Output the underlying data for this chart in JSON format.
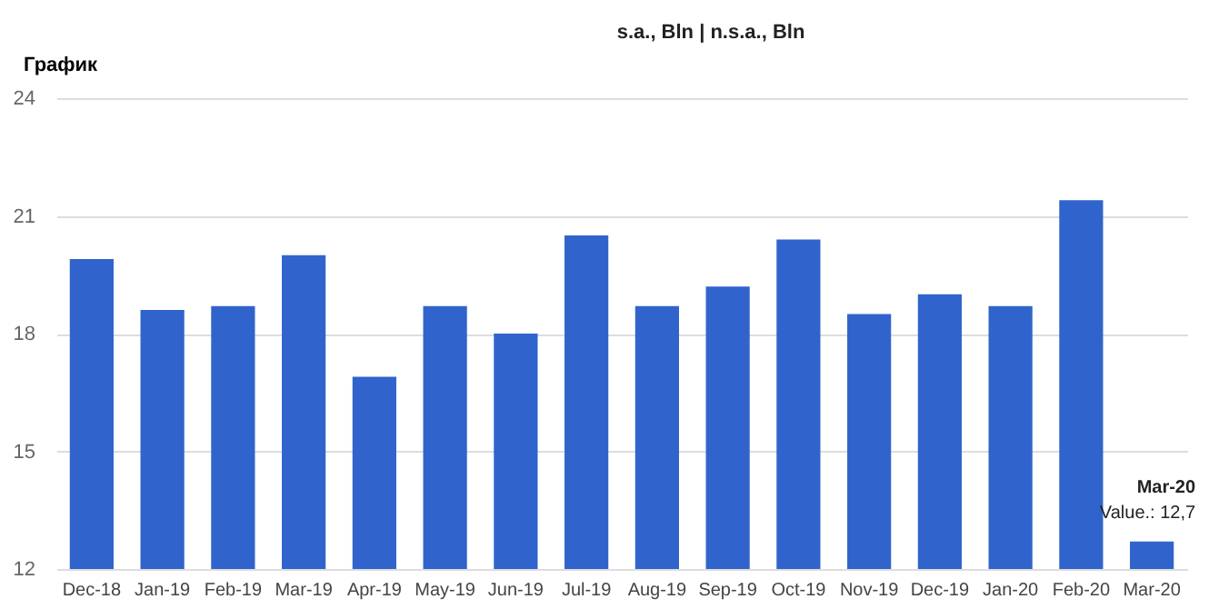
{
  "chart_data": {
    "type": "bar",
    "title": "График",
    "subtitle": "s.a., Bln | n.s.a., Bln",
    "categories": [
      "Dec-18",
      "Jan-19",
      "Feb-19",
      "Mar-19",
      "Apr-19",
      "May-19",
      "Jun-19",
      "Jul-19",
      "Aug-19",
      "Sep-19",
      "Oct-19",
      "Nov-19",
      "Dec-19",
      "Jan-20",
      "Feb-20",
      "Mar-20"
    ],
    "values": [
      19.9,
      18.6,
      18.7,
      20.0,
      16.9,
      18.7,
      18.0,
      20.5,
      18.7,
      19.2,
      20.4,
      18.5,
      19.0,
      18.7,
      21.4,
      12.7
    ],
    "color": "#3064cc",
    "ylim": [
      12,
      24
    ],
    "yticks": [
      12,
      15,
      18,
      21,
      24
    ],
    "grid": "y",
    "annotations": [
      {
        "text": "Mar-20",
        "x": "Mar-20",
        "y": 12.7
      },
      {
        "text": "Value.: 12,7",
        "x": "Mar-20",
        "y": 12.7
      }
    ]
  }
}
